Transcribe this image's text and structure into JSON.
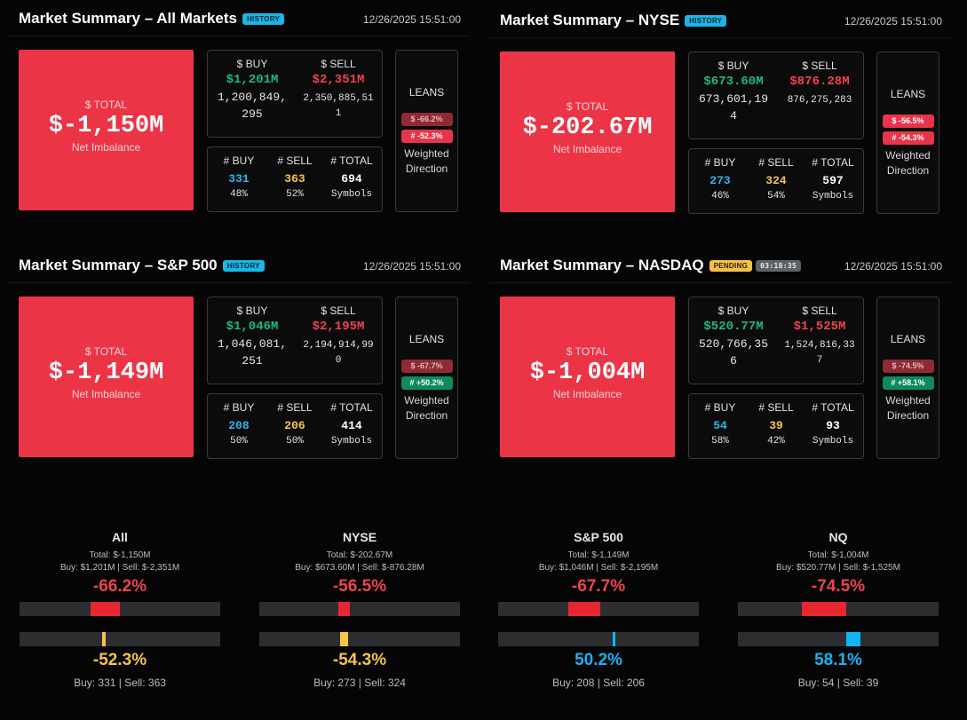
{
  "panels": [
    {
      "title": "Market Summary – All Markets",
      "badge": "HISTORY",
      "timestamp": "12/26/2025 15:51:00",
      "total_label": "$ TOTAL",
      "total_value": "$-1,150M",
      "total_sub": "Net Imbalance",
      "buy_label": "$ BUY",
      "sell_label": "$ SELL",
      "buy_short": "$1,201M",
      "sell_short": "$2,351M",
      "buy_raw_1": "1,200,849,",
      "buy_raw_2": "295",
      "sell_raw_1": "2,350,885,51",
      "sell_raw_2": "1",
      "count_buy_label": "# BUY",
      "count_sell_label": "# SELL",
      "count_total_label": "# TOTAL",
      "count_buy": "331",
      "count_sell": "363",
      "count_total": "694",
      "count_buy_pct": "48%",
      "count_sell_pct": "52%",
      "count_total_sub": "Symbols",
      "leans_label": "LEANS",
      "lean_dollar": "$ -66.2%",
      "lean_count": "# -52.3%",
      "weighted_1": "Weighted",
      "weighted_2": "Direction"
    },
    {
      "title": "Market Summary – NYSE",
      "badge": "HISTORY",
      "timestamp": "12/26/2025 15:51:00",
      "total_label": "$ TOTAL",
      "total_value": "$-202.67M",
      "total_sub": "Net Imbalance",
      "buy_label": "$ BUY",
      "sell_label": "$ SELL",
      "buy_short": "$673.60M",
      "sell_short": "$876.28M",
      "buy_raw_1": "673,601,19",
      "buy_raw_2": "4",
      "sell_raw_1": "876,275,283",
      "sell_raw_2": "",
      "count_buy_label": "# BUY",
      "count_sell_label": "# SELL",
      "count_total_label": "# TOTAL",
      "count_buy": "273",
      "count_sell": "324",
      "count_total": "597",
      "count_buy_pct": "46%",
      "count_sell_pct": "54%",
      "count_total_sub": "Symbols",
      "leans_label": "LEANS",
      "lean_dollar": "$ -56.5%",
      "lean_count": "# -54.3%",
      "weighted_1": "Weighted",
      "weighted_2": "Direction"
    },
    {
      "title": "Market Summary – S&P 500",
      "badge": "HISTORY",
      "timestamp": "12/26/2025 15:51:00",
      "total_label": "$ TOTAL",
      "total_value": "$-1,149M",
      "total_sub": "Net Imbalance",
      "buy_label": "$ BUY",
      "sell_label": "$ SELL",
      "buy_short": "$1,046M",
      "sell_short": "$2,195M",
      "buy_raw_1": "1,046,081,",
      "buy_raw_2": "251",
      "sell_raw_1": "2,194,914,99",
      "sell_raw_2": "0",
      "count_buy_label": "# BUY",
      "count_sell_label": "# SELL",
      "count_total_label": "# TOTAL",
      "count_buy": "208",
      "count_sell": "206",
      "count_total": "414",
      "count_buy_pct": "50%",
      "count_sell_pct": "50%",
      "count_total_sub": "Symbols",
      "leans_label": "LEANS",
      "lean_dollar": "$ -67.7%",
      "lean_count": "# +50.2%",
      "weighted_1": "Weighted",
      "weighted_2": "Direction"
    },
    {
      "title": "Market Summary – NASDAQ",
      "badge": "PENDING",
      "timer": "03:18:35",
      "timestamp": "12/26/2025 15:51:00",
      "total_label": "$ TOTAL",
      "total_value": "$-1,004M",
      "total_sub": "Net Imbalance",
      "buy_label": "$ BUY",
      "sell_label": "$ SELL",
      "buy_short": "$520.77M",
      "sell_short": "$1,525M",
      "buy_raw_1": "520,766,35",
      "buy_raw_2": "6",
      "sell_raw_1": "1,524,816,33",
      "sell_raw_2": "7",
      "count_buy_label": "# BUY",
      "count_sell_label": "# SELL",
      "count_total_label": "# TOTAL",
      "count_buy": "54",
      "count_sell": "39",
      "count_total": "93",
      "count_buy_pct": "58%",
      "count_sell_pct": "42%",
      "count_total_sub": "Symbols",
      "leans_label": "LEANS",
      "lean_dollar": "$ -74.5%",
      "lean_count": "# +58.1%",
      "weighted_1": "Weighted",
      "weighted_2": "Direction"
    }
  ],
  "comparison": [
    {
      "name": "All",
      "total_line": "Total: $-1,150M",
      "buysell_line": "Buy: $1,201M | Sell: $-2,351M",
      "dollar_lean": "-66.2%",
      "dollar_lean_value": -66.2,
      "count_lean": "-52.3%",
      "count_lean_value": -52.3,
      "count_lean_color": "#f6c545",
      "count_line": "Buy: 331 | Sell: 363"
    },
    {
      "name": "NYSE",
      "total_line": "Total: $-202.67M",
      "buysell_line": "Buy: $673.60M | Sell: $-876.28M",
      "dollar_lean": "-56.5%",
      "dollar_lean_value": -56.5,
      "count_lean": "-54.3%",
      "count_lean_value": -54.3,
      "count_lean_color": "#f6c545",
      "count_line": "Buy: 273 | Sell: 324"
    },
    {
      "name": "S&P 500",
      "total_line": "Total: $-1,149M",
      "buysell_line": "Buy: $1,046M | Sell: $-2,195M",
      "dollar_lean": "-67.7%",
      "dollar_lean_value": -67.7,
      "count_lean": "50.2%",
      "count_lean_value": 50.2,
      "count_lean_color": "#13b4f3",
      "count_line": "Buy: 208 | Sell: 206"
    },
    {
      "name": "NQ",
      "total_line": "Total: $-1,004M",
      "buysell_line": "Buy: $520.77M | Sell: $-1,525M",
      "dollar_lean": "-74.5%",
      "dollar_lean_value": -74.5,
      "count_lean": "58.1%",
      "count_lean_value": 58.1,
      "count_lean_color": "#13b4f3",
      "count_line": "Buy: 54 | Sell: 39"
    }
  ]
}
